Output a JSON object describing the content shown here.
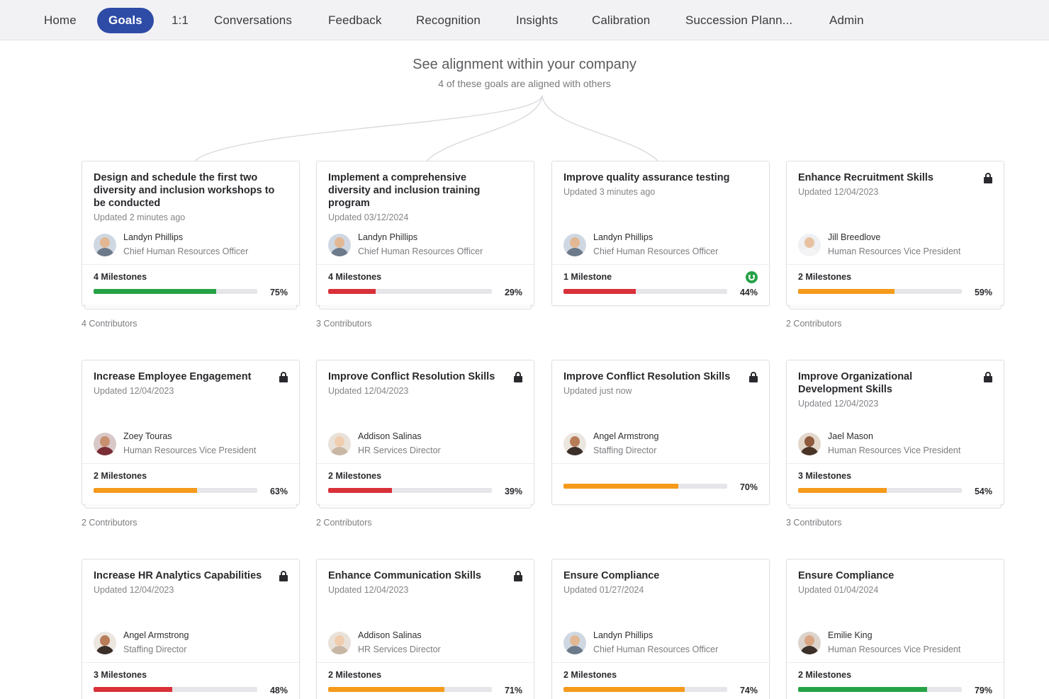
{
  "nav": {
    "items": [
      "Home",
      "Goals",
      "1:1",
      "Conversations",
      "Feedback",
      "Recognition",
      "Insights",
      "Calibration",
      "Succession Plann...",
      "Admin"
    ],
    "active": "Goals"
  },
  "alignment": {
    "title": "See alignment within your company",
    "subtitle": "4 of these goals are aligned with others"
  },
  "colors": {
    "accent": "#2e4ba6",
    "progress_green": "#27a247",
    "progress_orange": "#f59a1b",
    "progress_red": "#d9303a"
  },
  "cards": [
    {
      "title": "Design and schedule the first two diversity and inclusion workshops to be conducted",
      "updated": "Updated 2 minutes ago",
      "locked": false,
      "owner_name": "Landyn Phillips",
      "owner_role": "Chief Human Resources Officer",
      "avatar": "man-gray-shirt",
      "milestones": "4 Milestones",
      "progress": 75,
      "progress_label": "75%",
      "progress_color": "green",
      "contributors": "4 Contributors",
      "status_icon": null
    },
    {
      "title": "Implement a comprehensive diversity and inclusion training program",
      "updated": "Updated 03/12/2024",
      "locked": false,
      "owner_name": "Landyn Phillips",
      "owner_role": "Chief Human Resources Officer",
      "avatar": "man-gray-shirt",
      "milestones": "4 Milestones",
      "progress": 29,
      "progress_label": "29%",
      "progress_color": "red",
      "contributors": "3 Contributors",
      "status_icon": null
    },
    {
      "title": "Improve quality assurance testing",
      "updated": "Updated 3 minutes ago",
      "locked": false,
      "owner_name": "Landyn Phillips",
      "owner_role": "Chief Human Resources Officer",
      "avatar": "man-gray-shirt",
      "milestones": "1 Milestone",
      "progress": 44,
      "progress_label": "44%",
      "progress_color": "red",
      "contributors": "",
      "status_icon": "smile-icon"
    },
    {
      "title": "Enhance Recruitment Skills",
      "updated": "Updated 12/04/2023",
      "locked": true,
      "owner_name": "Jill Breedlove",
      "owner_role": "Human Resources Vice President",
      "avatar": "woman-white-top",
      "milestones": "2 Milestones",
      "progress": 59,
      "progress_label": "59%",
      "progress_color": "orange",
      "contributors": "2 Contributors",
      "status_icon": null
    },
    {
      "title": "Increase Employee Engagement",
      "updated": "Updated 12/04/2023",
      "locked": true,
      "owner_name": "Zoey Touras",
      "owner_role": "Human Resources Vice President",
      "avatar": "woman-red-top",
      "milestones": "2 Milestones",
      "progress": 63,
      "progress_label": "63%",
      "progress_color": "orange",
      "contributors": "2 Contributors",
      "status_icon": null
    },
    {
      "title": "Improve Conflict Resolution Skills",
      "updated": "Updated 12/04/2023",
      "locked": true,
      "owner_name": "Addison Salinas",
      "owner_role": "HR Services Director",
      "avatar": "woman-light",
      "milestones": "2 Milestones",
      "progress": 39,
      "progress_label": "39%",
      "progress_color": "red",
      "contributors": "2 Contributors",
      "status_icon": null
    },
    {
      "title": "Improve Conflict Resolution Skills",
      "updated": "Updated just now",
      "locked": true,
      "owner_name": "Angel Armstrong",
      "owner_role": "Staffing Director",
      "avatar": "woman-dark-hair",
      "milestones": "",
      "progress": 70,
      "progress_label": "70%",
      "progress_color": "orange",
      "contributors": "",
      "status_icon": null
    },
    {
      "title": "Improve Organizational Development Skills",
      "updated": "Updated 12/04/2023",
      "locked": true,
      "owner_name": "Jael Mason",
      "owner_role": "Human Resources Vice President",
      "avatar": "woman-curly",
      "milestones": "3 Milestones",
      "progress": 54,
      "progress_label": "54%",
      "progress_color": "orange",
      "contributors": "3 Contributors",
      "status_icon": null
    },
    {
      "title": "Increase HR Analytics Capabilities",
      "updated": "Updated 12/04/2023",
      "locked": true,
      "owner_name": "Angel Armstrong",
      "owner_role": "Staffing Director",
      "avatar": "woman-dark-hair",
      "milestones": "3 Milestones",
      "progress": 48,
      "progress_label": "48%",
      "progress_color": "red",
      "contributors": "",
      "status_icon": null
    },
    {
      "title": "Enhance Communication Skills",
      "updated": "Updated 12/04/2023",
      "locked": true,
      "owner_name": "Addison Salinas",
      "owner_role": "HR Services Director",
      "avatar": "woman-light",
      "milestones": "2 Milestones",
      "progress": 71,
      "progress_label": "71%",
      "progress_color": "orange",
      "contributors": "",
      "status_icon": null
    },
    {
      "title": "Ensure Compliance",
      "updated": "Updated 01/27/2024",
      "locked": false,
      "owner_name": "Landyn Phillips",
      "owner_role": "Chief Human Resources Officer",
      "avatar": "man-gray-shirt",
      "milestones": "2 Milestones",
      "progress": 74,
      "progress_label": "74%",
      "progress_color": "orange",
      "contributors": "",
      "status_icon": null
    },
    {
      "title": "Ensure Compliance",
      "updated": "Updated 01/04/2024",
      "locked": false,
      "owner_name": "Emilie King",
      "owner_role": "Human Resources Vice President",
      "avatar": "woman-brown-hair",
      "milestones": "2 Milestones",
      "progress": 79,
      "progress_label": "79%",
      "progress_color": "green",
      "contributors": "",
      "status_icon": null
    }
  ]
}
